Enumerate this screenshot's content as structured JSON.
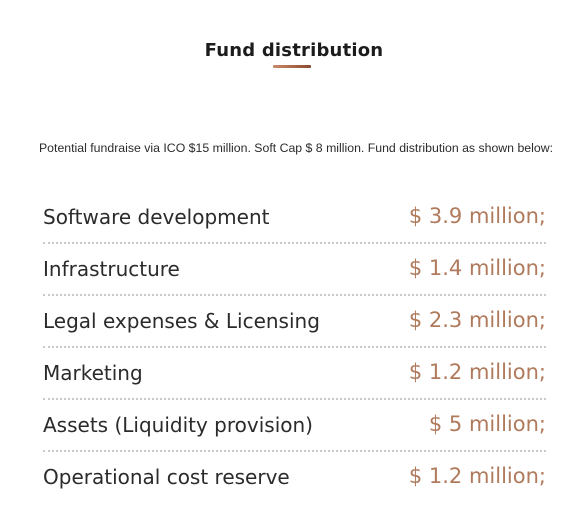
{
  "header": {
    "title": "Fund distribution"
  },
  "intro_text": "Potential fundraise via ICO $15 million. Soft Cap $ 8 million. Fund distribution as shown below:",
  "colors": {
    "accent": "#b07a5c",
    "underline_start": "#c98a6a",
    "underline_end": "#8a4a30",
    "text": "#2b2b2b",
    "divider": "#c9c9c9"
  },
  "distribution": [
    {
      "label": "Software development",
      "amount": "$ 3.9 million;"
    },
    {
      "label": "Infrastructure",
      "amount": "$ 1.4 million;"
    },
    {
      "label": "Legal expenses & Licensing",
      "amount": "$ 2.3 million;"
    },
    {
      "label": "Marketing",
      "amount": "$ 1.2 million;"
    },
    {
      "label": "Assets (Liquidity provision)",
      "amount": "$ 5 million;"
    },
    {
      "label": "Operational cost reserve",
      "amount": "$ 1.2 million;"
    }
  ]
}
